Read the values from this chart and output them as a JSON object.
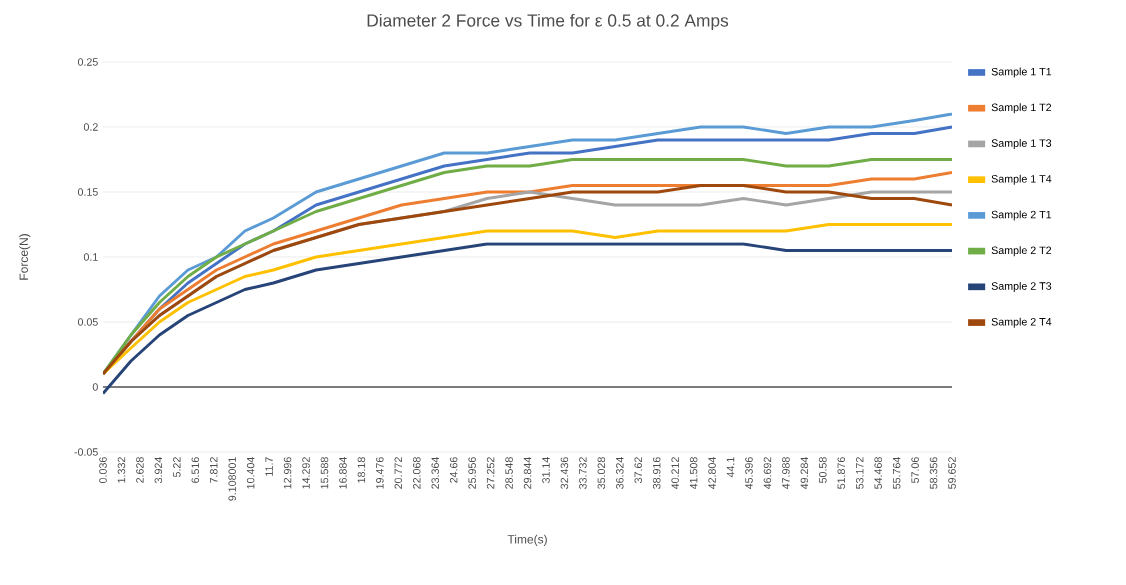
{
  "chart_data": {
    "type": "line",
    "title": "Diameter 2 Force vs Time for ε 0.5 at 0.2 Amps",
    "xlabel": "Time(s)",
    "ylabel": "Force(N)",
    "x": [
      0.036,
      2,
      4,
      6,
      8,
      10,
      12,
      15,
      18,
      21,
      24,
      27,
      30,
      33,
      36,
      39,
      42,
      45,
      48,
      51,
      54,
      57,
      59.652
    ],
    "series": [
      {
        "name": "Sample 1 T1",
        "color": "#4472c4",
        "values": [
          0.01,
          0.035,
          0.06,
          0.08,
          0.095,
          0.11,
          0.12,
          0.14,
          0.15,
          0.16,
          0.17,
          0.175,
          0.18,
          0.18,
          0.185,
          0.19,
          0.19,
          0.19,
          0.19,
          0.19,
          0.195,
          0.195,
          0.2
        ]
      },
      {
        "name": "Sample 1 T2",
        "color": "#ed7d31",
        "values": [
          0.01,
          0.035,
          0.06,
          0.075,
          0.09,
          0.1,
          0.11,
          0.12,
          0.13,
          0.14,
          0.145,
          0.15,
          0.15,
          0.155,
          0.155,
          0.155,
          0.155,
          0.155,
          0.155,
          0.155,
          0.16,
          0.16,
          0.165
        ]
      },
      {
        "name": "Sample 1 T3",
        "color": "#a5a5a5",
        "values": [
          0.01,
          0.035,
          0.055,
          0.07,
          0.085,
          0.095,
          0.105,
          0.115,
          0.125,
          0.13,
          0.135,
          0.145,
          0.15,
          0.145,
          0.14,
          0.14,
          0.14,
          0.145,
          0.14,
          0.145,
          0.15,
          0.15,
          0.15
        ]
      },
      {
        "name": "Sample 1 T4",
        "color": "#ffc000",
        "values": [
          0.01,
          0.03,
          0.05,
          0.065,
          0.075,
          0.085,
          0.09,
          0.1,
          0.105,
          0.11,
          0.115,
          0.12,
          0.12,
          0.12,
          0.115,
          0.12,
          0.12,
          0.12,
          0.12,
          0.125,
          0.125,
          0.125,
          0.125
        ]
      },
      {
        "name": "Sample 2 T1",
        "color": "#5b9bd5",
        "values": [
          0.01,
          0.04,
          0.07,
          0.09,
          0.1,
          0.12,
          0.13,
          0.15,
          0.16,
          0.17,
          0.18,
          0.18,
          0.185,
          0.19,
          0.19,
          0.195,
          0.2,
          0.2,
          0.195,
          0.2,
          0.2,
          0.205,
          0.21
        ]
      },
      {
        "name": "Sample 2 T2",
        "color": "#70ad47",
        "values": [
          0.01,
          0.04,
          0.065,
          0.085,
          0.1,
          0.11,
          0.12,
          0.135,
          0.145,
          0.155,
          0.165,
          0.17,
          0.17,
          0.175,
          0.175,
          0.175,
          0.175,
          0.175,
          0.17,
          0.17,
          0.175,
          0.175,
          0.175
        ]
      },
      {
        "name": "Sample 2 T3",
        "color": "#264478",
        "values": [
          -0.005,
          0.02,
          0.04,
          0.055,
          0.065,
          0.075,
          0.08,
          0.09,
          0.095,
          0.1,
          0.105,
          0.11,
          0.11,
          0.11,
          0.11,
          0.11,
          0.11,
          0.11,
          0.105,
          0.105,
          0.105,
          0.105,
          0.105
        ]
      },
      {
        "name": "Sample 2 T4",
        "color": "#9e480e",
        "values": [
          0.01,
          0.035,
          0.055,
          0.07,
          0.085,
          0.095,
          0.105,
          0.115,
          0.125,
          0.13,
          0.135,
          0.14,
          0.145,
          0.15,
          0.15,
          0.15,
          0.155,
          0.155,
          0.15,
          0.15,
          0.145,
          0.145,
          0.14
        ]
      }
    ],
    "xlim": [
      0.036,
      59.652
    ],
    "xticks": [
      0.036,
      1.332,
      2.628,
      3.924,
      5.22,
      6.516,
      7.812,
      9.108001,
      10.404,
      11.7,
      12.996,
      14.292,
      15.588,
      16.884,
      18.18,
      19.476,
      20.772,
      22.068,
      23.364,
      24.66,
      25.956,
      27.252,
      28.548,
      29.844,
      31.14,
      32.436,
      33.732,
      35.028,
      36.324,
      37.62,
      38.916,
      40.212,
      41.508,
      42.804,
      44.1,
      45.396,
      46.692,
      47.988,
      49.284,
      50.58,
      51.876,
      53.172,
      54.468,
      55.764,
      57.06,
      58.356,
      59.652
    ],
    "ylim": [
      -0.05,
      0.25
    ],
    "yticks": [
      -0.05,
      0,
      0.05,
      0.1,
      0.15,
      0.2,
      0.25
    ],
    "grid": "y",
    "legend": "right",
    "marker": "none",
    "line_style": "solid"
  }
}
